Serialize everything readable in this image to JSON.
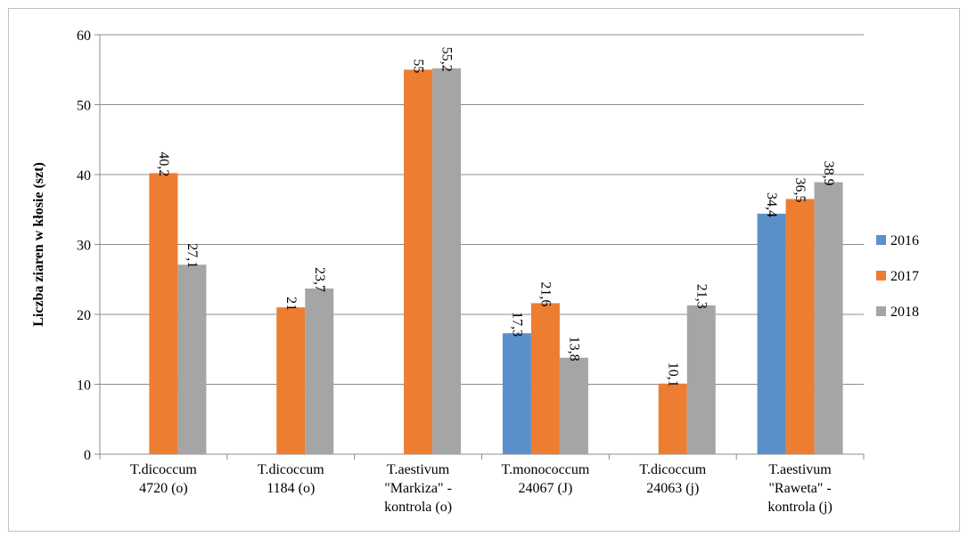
{
  "chart_data": {
    "type": "bar",
    "ylabel": "Liczba ziaren w kłosie (szt)",
    "ylim": [
      0,
      60
    ],
    "yticks": [
      0,
      10,
      20,
      30,
      40,
      50,
      60
    ],
    "grid": true,
    "legend_position": "right",
    "categories": [
      [
        "T.dicoccum",
        "4720 (o)"
      ],
      [
        "T.dicoccum",
        "1184 (o)"
      ],
      [
        "T.aestivum",
        "\"Markiza\" -",
        "kontrola (o)"
      ],
      [
        "T.monococcum",
        "24067 (J)"
      ],
      [
        "T.dicoccum",
        "24063 (j)"
      ],
      [
        "T.aestivum",
        "\"Raweta\" -",
        "kontrola (j)"
      ]
    ],
    "series": [
      {
        "name": "2016",
        "color": "#5b8fc9",
        "values": [
          null,
          null,
          null,
          17.3,
          null,
          34.4
        ],
        "labels": [
          "",
          "",
          "",
          "17,3",
          "",
          "34,4"
        ]
      },
      {
        "name": "2017",
        "color": "#ed7d31",
        "values": [
          40.2,
          21,
          55,
          21.6,
          10.1,
          36.5
        ],
        "labels": [
          "40,2",
          "21",
          "55",
          "21,6",
          "10,1",
          "36,5"
        ]
      },
      {
        "name": "2018",
        "color": "#a5a5a5",
        "values": [
          27.1,
          23.7,
          55.2,
          13.8,
          21.3,
          38.9
        ],
        "labels": [
          "27,1",
          "23,7",
          "55,2",
          "13,8",
          "21,3",
          "38,9"
        ]
      }
    ]
  }
}
